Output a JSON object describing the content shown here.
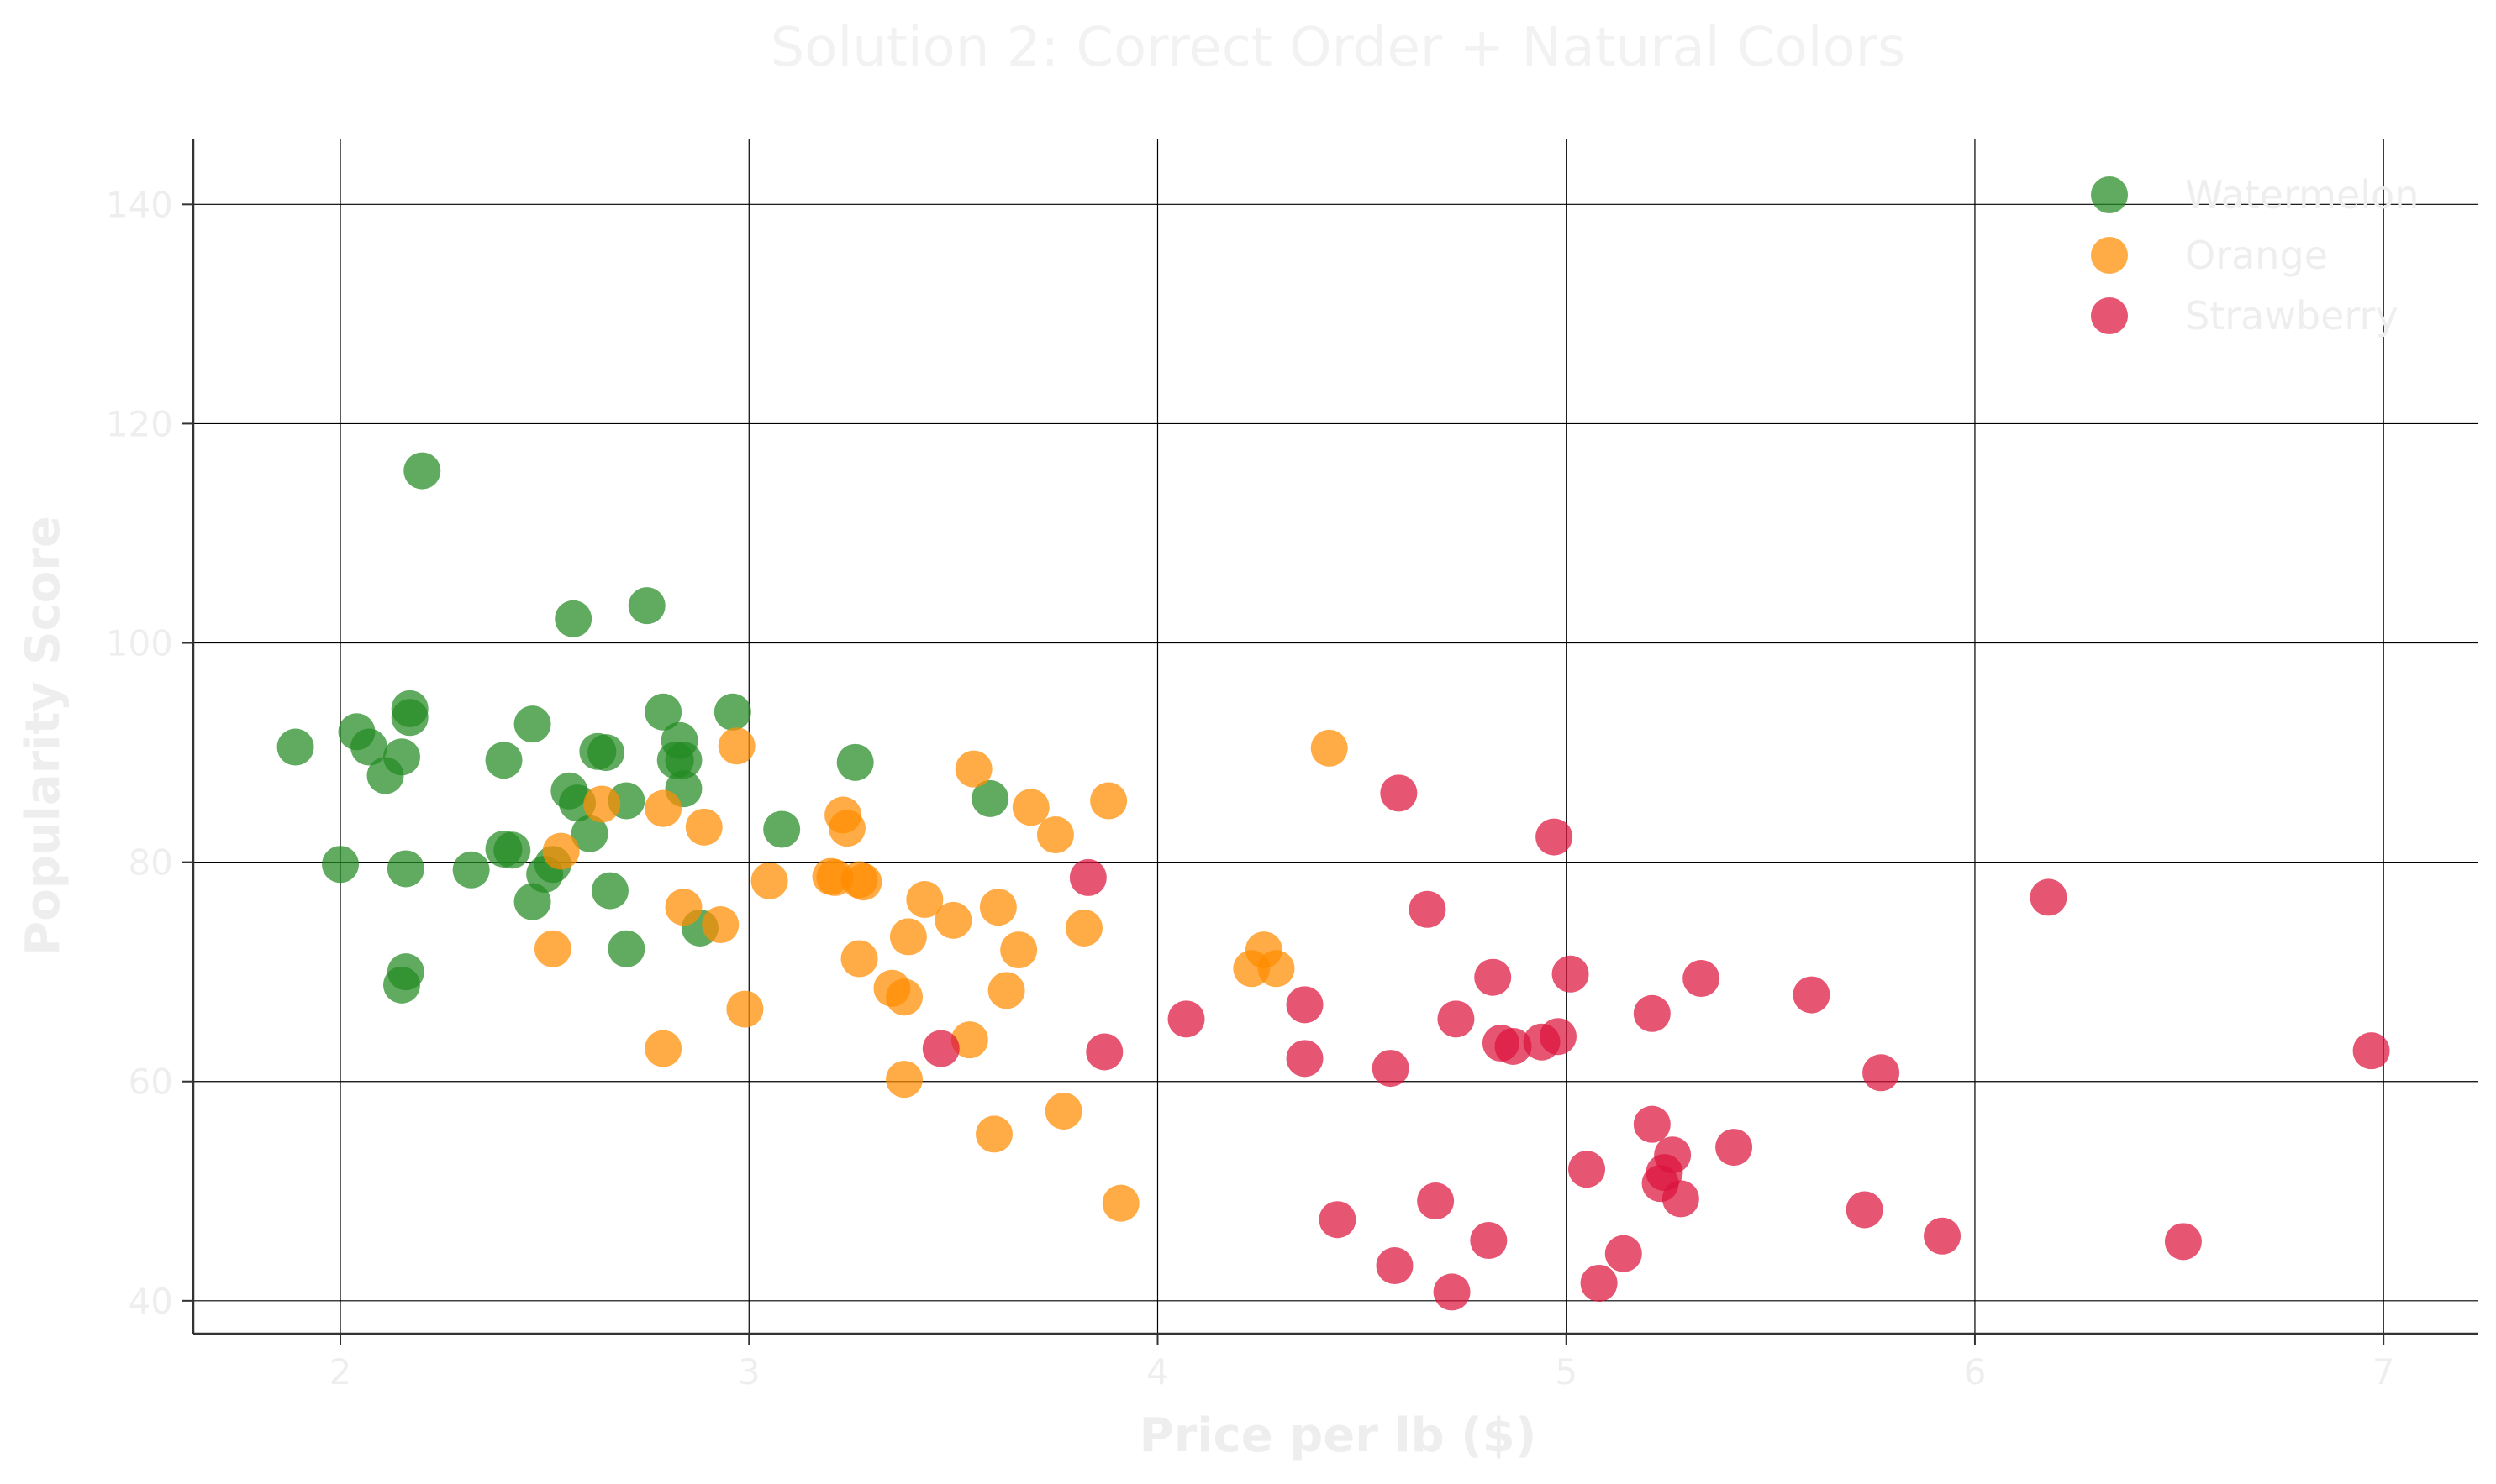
{
  "chart_data": {
    "type": "scatter",
    "title": "Solution 2: Correct Order + Natural Colors",
    "xlabel": "Price per lb ($)",
    "ylabel": "Popularity Score",
    "xlim": [
      1.64,
      7.23
    ],
    "ylim": [
      37,
      146
    ],
    "xticks": [
      2,
      3,
      4,
      5,
      6,
      7
    ],
    "yticks": [
      40,
      60,
      80,
      100,
      120,
      140
    ],
    "grid": true,
    "legend_position": "top-right",
    "series": [
      {
        "name": "Watermelon",
        "color": "#228B22",
        "points": [
          [
            2.2,
            115.7
          ],
          [
            2.57,
            102.2
          ],
          [
            2.75,
            103.4
          ],
          [
            2.17,
            94.0
          ],
          [
            2.17,
            93.2
          ],
          [
            1.89,
            90.5
          ],
          [
            2.04,
            91.9
          ],
          [
            2.07,
            90.5
          ],
          [
            2.15,
            89.6
          ],
          [
            2.11,
            87.9
          ],
          [
            2.0,
            79.8
          ],
          [
            2.16,
            79.4
          ],
          [
            2.4,
            89.3
          ],
          [
            2.47,
            92.6
          ],
          [
            2.32,
            79.3
          ],
          [
            2.4,
            81.2
          ],
          [
            2.42,
            81.1
          ],
          [
            2.5,
            78.9
          ],
          [
            2.52,
            79.8
          ],
          [
            2.47,
            76.4
          ],
          [
            2.16,
            70.0
          ],
          [
            2.15,
            68.8
          ],
          [
            2.56,
            86.5
          ],
          [
            2.58,
            85.4
          ],
          [
            2.61,
            82.6
          ],
          [
            2.63,
            90.1
          ],
          [
            2.65,
            90.0
          ],
          [
            2.7,
            85.6
          ],
          [
            2.66,
            77.4
          ],
          [
            2.7,
            72.1
          ],
          [
            2.79,
            93.7
          ],
          [
            2.82,
            89.3
          ],
          [
            2.83,
            91.1
          ],
          [
            2.84,
            89.3
          ],
          [
            2.84,
            86.7
          ],
          [
            2.88,
            74.0
          ],
          [
            2.96,
            93.7
          ],
          [
            3.08,
            83.0
          ],
          [
            3.26,
            89.1
          ],
          [
            3.59,
            85.8
          ]
        ]
      },
      {
        "name": "Orange",
        "color": "#FF8C00",
        "points": [
          [
            2.97,
            90.6
          ],
          [
            2.54,
            81.0
          ],
          [
            2.64,
            85.3
          ],
          [
            2.79,
            84.9
          ],
          [
            2.89,
            83.2
          ],
          [
            2.52,
            72.1
          ],
          [
            2.84,
            75.9
          ],
          [
            2.93,
            74.3
          ],
          [
            2.79,
            63.0
          ],
          [
            2.99,
            66.6
          ],
          [
            3.05,
            78.3
          ],
          [
            3.2,
            78.7
          ],
          [
            3.21,
            78.6
          ],
          [
            3.23,
            84.3
          ],
          [
            3.24,
            83.1
          ],
          [
            3.27,
            78.4
          ],
          [
            3.28,
            78.2
          ],
          [
            3.27,
            71.2
          ],
          [
            3.35,
            68.5
          ],
          [
            3.38,
            67.7
          ],
          [
            3.39,
            73.2
          ],
          [
            3.38,
            60.2
          ],
          [
            3.43,
            76.6
          ],
          [
            3.5,
            74.7
          ],
          [
            3.55,
            88.5
          ],
          [
            3.54,
            63.8
          ],
          [
            3.61,
            75.9
          ],
          [
            3.63,
            68.3
          ],
          [
            3.66,
            72.0
          ],
          [
            3.6,
            55.2
          ],
          [
            3.69,
            85.0
          ],
          [
            3.75,
            82.5
          ],
          [
            3.77,
            57.3
          ],
          [
            3.82,
            74.0
          ],
          [
            3.88,
            85.6
          ],
          [
            3.91,
            48.9
          ],
          [
            4.23,
            70.3
          ],
          [
            4.26,
            72.0
          ],
          [
            4.29,
            70.3
          ],
          [
            4.42,
            90.4
          ]
        ]
      },
      {
        "name": "Strawberry",
        "color": "#DC143C",
        "points": [
          [
            3.83,
            78.6
          ],
          [
            3.47,
            63.0
          ],
          [
            3.87,
            62.7
          ],
          [
            4.07,
            65.7
          ],
          [
            4.36,
            67.0
          ],
          [
            4.36,
            62.1
          ],
          [
            4.44,
            47.4
          ],
          [
            4.57,
            61.2
          ],
          [
            4.58,
            43.2
          ],
          [
            4.59,
            86.3
          ],
          [
            4.66,
            75.7
          ],
          [
            4.68,
            49.1
          ],
          [
            4.73,
            65.7
          ],
          [
            4.72,
            40.8
          ],
          [
            4.81,
            45.5
          ],
          [
            4.82,
            69.5
          ],
          [
            4.84,
            63.5
          ],
          [
            4.87,
            63.2
          ],
          [
            4.94,
            63.6
          ],
          [
            4.98,
            64.1
          ],
          [
            4.97,
            82.3
          ],
          [
            5.01,
            69.8
          ],
          [
            5.05,
            52.0
          ],
          [
            5.08,
            41.6
          ],
          [
            5.14,
            44.3
          ],
          [
            5.21,
            66.2
          ],
          [
            5.21,
            56.1
          ],
          [
            5.23,
            50.7
          ],
          [
            5.24,
            51.7
          ],
          [
            5.26,
            53.3
          ],
          [
            5.28,
            49.3
          ],
          [
            5.33,
            69.4
          ],
          [
            5.41,
            54.0
          ],
          [
            5.6,
            67.9
          ],
          [
            5.73,
            48.3
          ],
          [
            5.77,
            60.8
          ],
          [
            5.92,
            45.9
          ],
          [
            6.18,
            76.8
          ],
          [
            6.51,
            45.4
          ],
          [
            6.97,
            62.8
          ]
        ]
      }
    ]
  }
}
